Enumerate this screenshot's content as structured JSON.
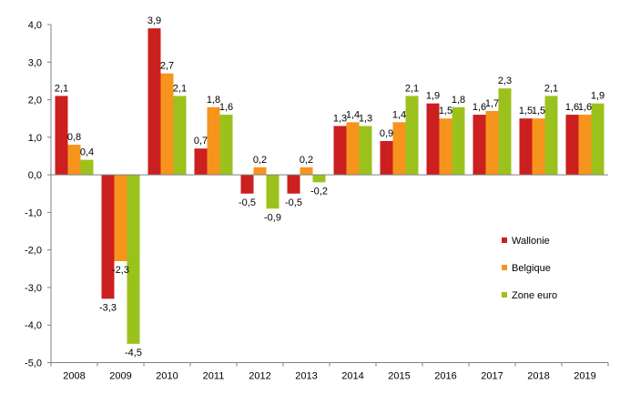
{
  "chart_data": {
    "type": "bar",
    "categories": [
      "2008",
      "2009",
      "2010",
      "2011",
      "2012",
      "2013",
      "2014",
      "2015",
      "2016",
      "2017",
      "2018",
      "2019"
    ],
    "series": [
      {
        "name": "Wallonie",
        "color": "#cc1f1f",
        "values": [
          2.1,
          -3.3,
          3.9,
          0.7,
          -0.5,
          -0.5,
          1.3,
          0.9,
          1.9,
          1.6,
          1.5,
          1.6
        ],
        "labels": [
          "2,1",
          "-3,3",
          "3,9",
          "0,7",
          "-0,5",
          "-0,5",
          "1,3",
          "0,9",
          "1,9",
          "1,6",
          "1,5",
          "1,6"
        ]
      },
      {
        "name": "Belgique",
        "color": "#f7941d",
        "values": [
          0.8,
          -2.3,
          2.7,
          1.8,
          0.2,
          0.2,
          1.4,
          1.4,
          1.5,
          1.7,
          1.5,
          1.6
        ],
        "labels": [
          "0,8",
          "-2,3",
          "2,7",
          "1,8",
          "0,2",
          "0,2",
          "1,4",
          "1,4",
          "1,5",
          "1,7",
          "1,5",
          "1,6"
        ]
      },
      {
        "name": "Zone euro",
        "color": "#9bc21c",
        "values": [
          0.4,
          -4.5,
          2.1,
          1.6,
          -0.9,
          -0.2,
          1.3,
          2.1,
          1.8,
          2.3,
          2.1,
          1.9
        ],
        "labels": [
          "0,4",
          "-4,5",
          "2,1",
          "1,6",
          "-0,9",
          "-0,2",
          "1,3",
          "2,1",
          "1,8",
          "2,3",
          "2,1",
          "1,9"
        ]
      }
    ],
    "y_ticks": [
      4.0,
      3.0,
      2.0,
      1.0,
      0.0,
      -1.0,
      -2.0,
      -3.0,
      -4.0,
      -5.0
    ],
    "y_tick_labels": [
      "4,0",
      "3,0",
      "2,0",
      "1,0",
      "0,0",
      "-1,0",
      "-2,0",
      "-3,0",
      "-4,0",
      "-5,0"
    ],
    "ylim": [
      -5.0,
      4.0
    ],
    "title": "",
    "xlabel": "",
    "ylabel": "",
    "grid": false,
    "legend_position": "right"
  }
}
